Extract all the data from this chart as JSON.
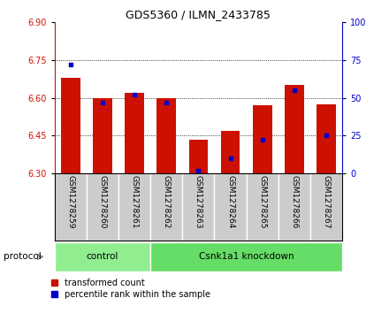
{
  "title": "GDS5360 / ILMN_2433785",
  "samples": [
    "GSM1278259",
    "GSM1278260",
    "GSM1278261",
    "GSM1278262",
    "GSM1278263",
    "GSM1278264",
    "GSM1278265",
    "GSM1278266",
    "GSM1278267"
  ],
  "transformed_count": [
    6.68,
    6.6,
    6.62,
    6.6,
    6.435,
    6.47,
    6.57,
    6.65,
    6.575
  ],
  "percentile_rank": [
    72,
    47,
    52,
    47,
    2,
    10,
    22,
    55,
    25
  ],
  "ylim_left": [
    6.3,
    6.9
  ],
  "ylim_right": [
    0,
    100
  ],
  "yticks_left": [
    6.3,
    6.45,
    6.6,
    6.75,
    6.9
  ],
  "yticks_right": [
    0,
    25,
    50,
    75,
    100
  ],
  "groups": [
    {
      "label": "control",
      "span": 3,
      "color": "#90EE90"
    },
    {
      "label": "Csnk1a1 knockdown",
      "span": 6,
      "color": "#66DD66"
    }
  ],
  "protocol_label": "protocol",
  "bar_color": "#CC1100",
  "dot_color": "#0000CC",
  "bar_width": 0.6,
  "bg_color": "#FFFFFF",
  "tick_area_color": "#CCCCCC",
  "left_axis_color": "#CC1100",
  "right_axis_color": "#0000CC",
  "legend_bar": "transformed count",
  "legend_dot": "percentile rank within the sample",
  "title_fontsize": 9,
  "tick_fontsize": 7,
  "label_fontsize": 6.5
}
